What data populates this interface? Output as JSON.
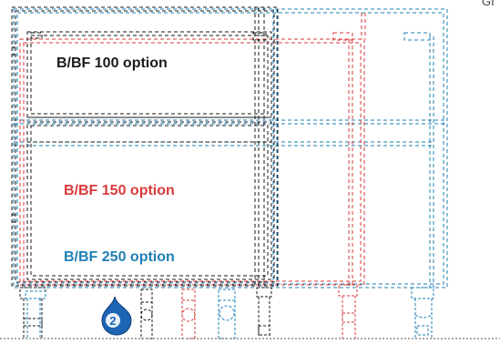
{
  "labels": {
    "option_100": "B/BF 100 option",
    "option_150": "B/BF 150 option",
    "option_250": "B/BF 250 option"
  },
  "badge": {
    "number": "2"
  },
  "corner_text": "GI",
  "colors": {
    "black": "#1a1a1a",
    "red": "#d93a3a",
    "blue": "#1f7fb6",
    "badge": "#1e64b4",
    "ground": "#555555"
  },
  "icons": {
    "badge": "water-drop-number-icon",
    "connector": "pipe-connector-icon",
    "leg": "adjustable-foot-icon"
  }
}
